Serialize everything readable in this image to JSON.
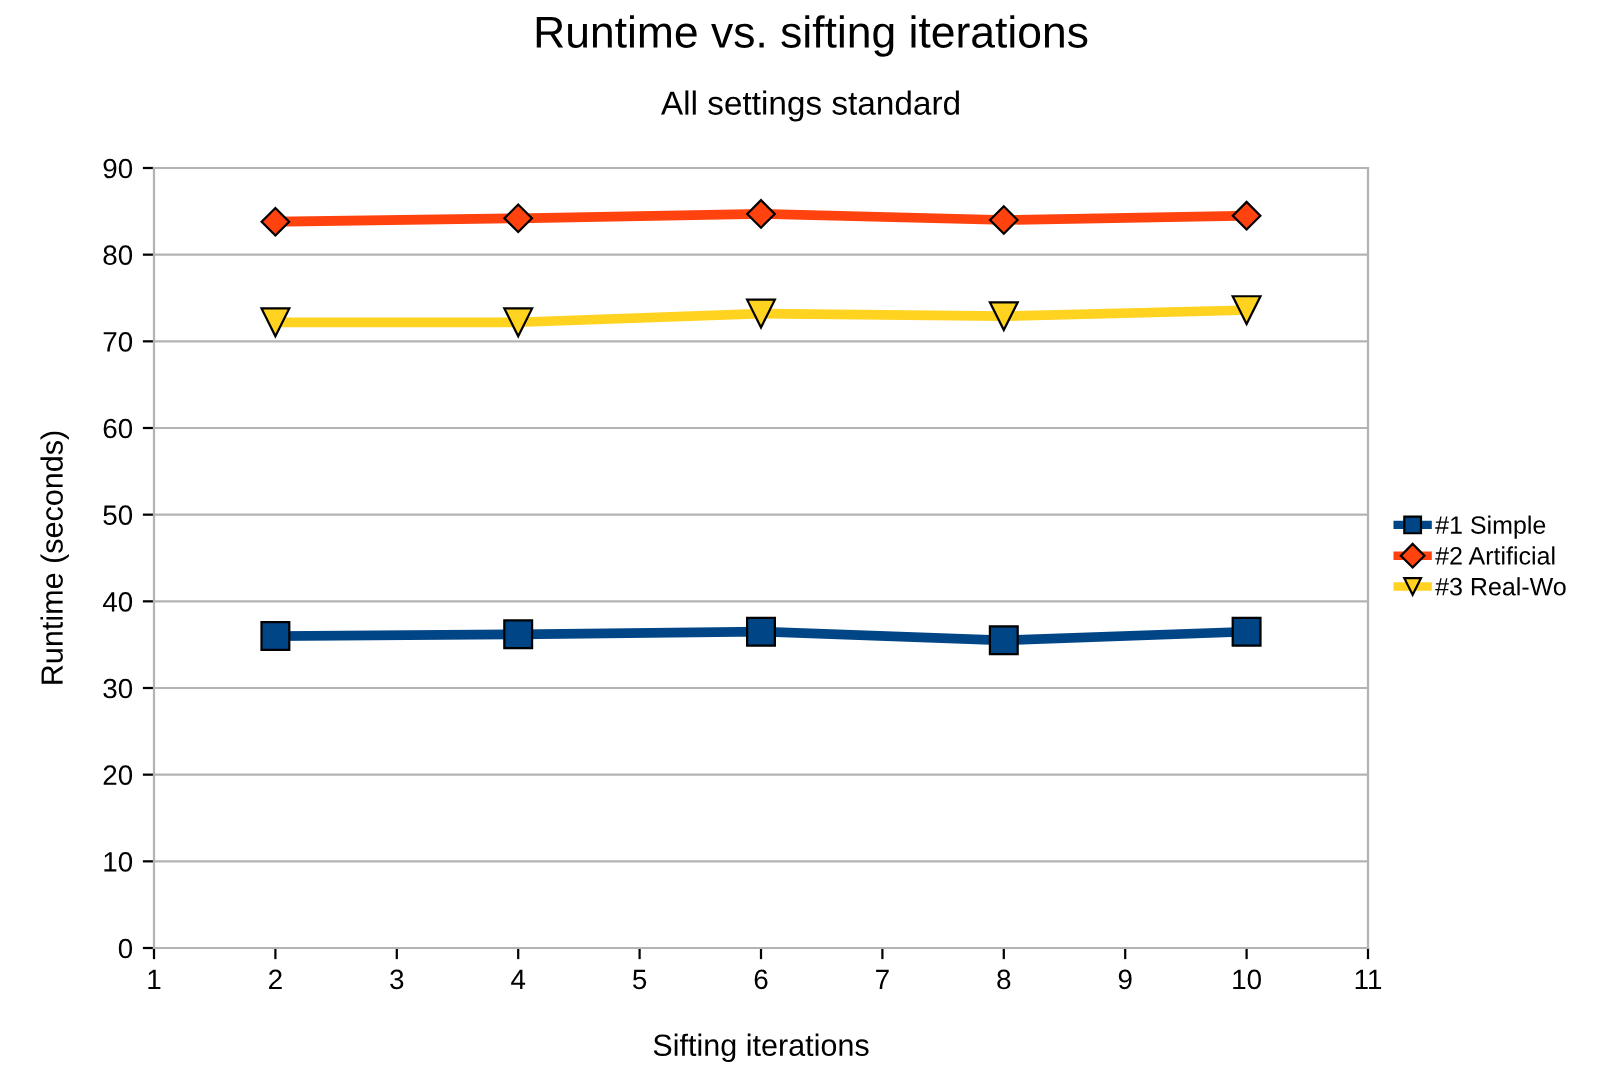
{
  "chart_data": {
    "type": "line",
    "title": "Runtime vs. sifting iterations",
    "subtitle": "All settings standard",
    "xlabel": "Sifting iterations",
    "ylabel": "Runtime (seconds)",
    "x": [
      2,
      4,
      6,
      8,
      10
    ],
    "series": [
      {
        "name": "#1 Simple",
        "color": "#004586",
        "marker": "square",
        "values": [
          36.0,
          36.2,
          36.5,
          35.5,
          36.5
        ]
      },
      {
        "name": "#2 Artificial",
        "color": "#ff420e",
        "marker": "diamond",
        "values": [
          83.8,
          84.2,
          84.7,
          84.0,
          84.5
        ]
      },
      {
        "name": "#3 Real-Wo",
        "color": "#ffd320",
        "marker": "triangle",
        "values": [
          72.2,
          72.2,
          73.2,
          72.9,
          73.6
        ]
      }
    ],
    "xlim": [
      1,
      11
    ],
    "xticks": [
      1,
      2,
      3,
      4,
      5,
      6,
      7,
      8,
      9,
      10,
      11
    ],
    "ylim": [
      0,
      90
    ],
    "yticks": [
      0,
      10,
      20,
      30,
      40,
      50,
      60,
      70,
      80,
      90
    ],
    "grid": "y",
    "legend": "right",
    "line_style": "solid"
  }
}
